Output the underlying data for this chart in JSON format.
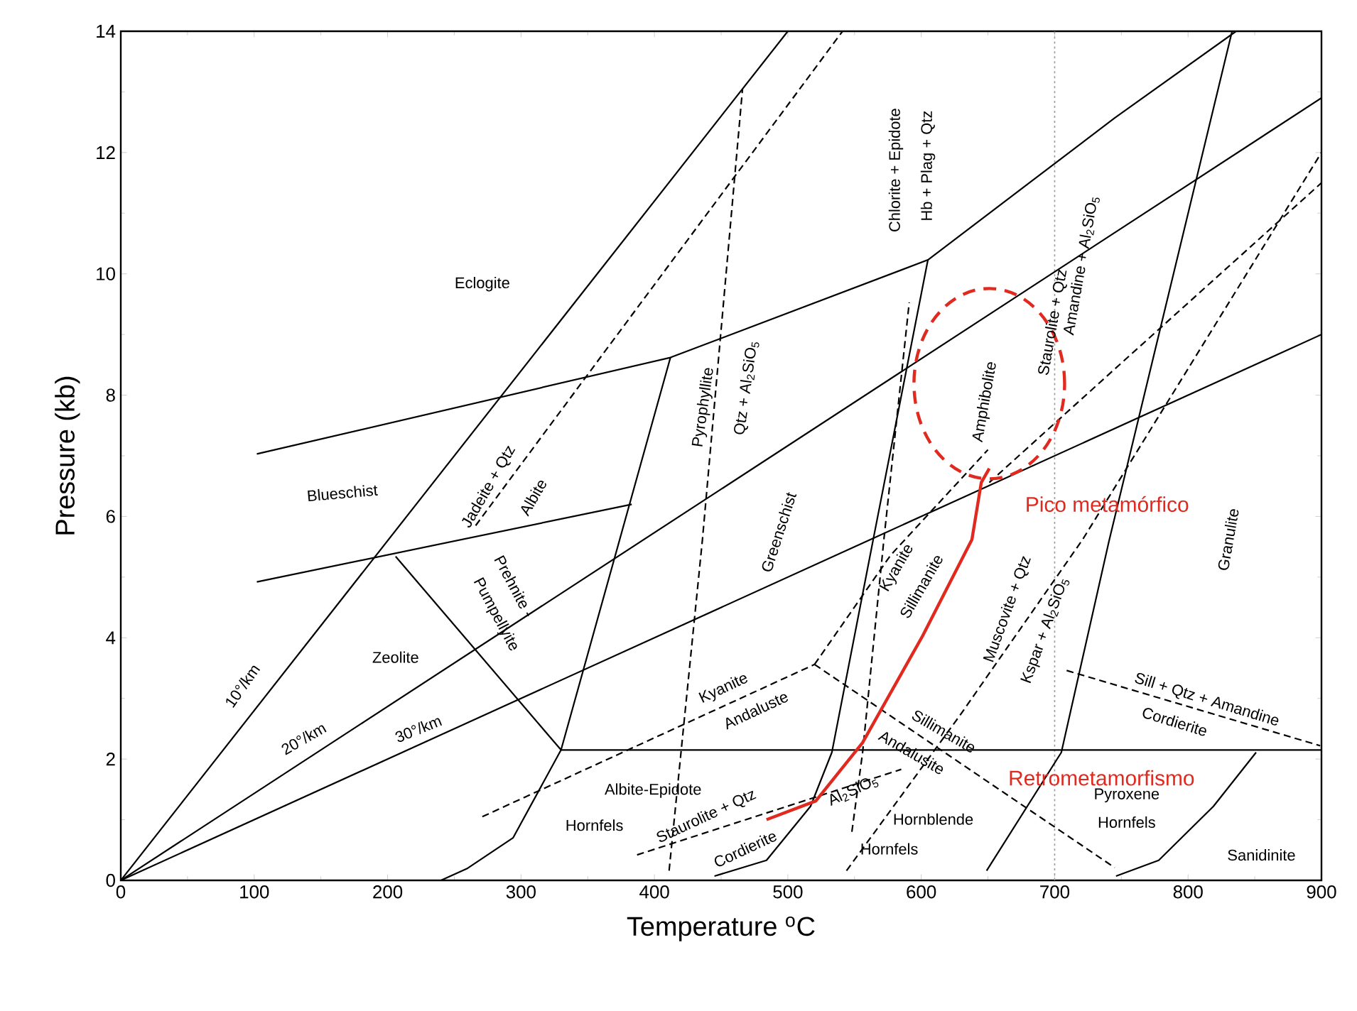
{
  "chart_data": {
    "type": "line",
    "xlabel": "Temperature $^{o}$C",
    "ylabel": "Pressure (kb)",
    "xlim": [
      0,
      900
    ],
    "ylim": [
      0,
      14
    ],
    "xticks": [
      0,
      100,
      200,
      300,
      400,
      500,
      600,
      700,
      800,
      900
    ],
    "yticks": [
      0,
      2,
      4,
      6,
      8,
      10,
      12,
      14
    ],
    "series": [
      {
        "color": "#000000",
        "line_style": "solid",
        "x": [
          102,
          412,
          605,
          745,
          836
        ],
        "values": [
          7.03,
          8.62,
          10.23,
          12.57,
          14
        ]
      },
      {
        "color": "#000000",
        "line_style": "solid",
        "x": [
          102,
          383
        ],
        "values": [
          4.92,
          6.2
        ]
      },
      {
        "color": "#000000",
        "line_style": "solid",
        "x": [
          412,
          330,
          294,
          260,
          240
        ],
        "values": [
          8.62,
          2.15,
          0.7,
          0.2,
          0
        ]
      },
      {
        "color": "#000000",
        "line_style": "solid",
        "x": [
          206,
          330
        ],
        "values": [
          5.34,
          2.15
        ]
      },
      {
        "color": "#000000",
        "line_style": "solid",
        "x": [
          605,
          564,
          533,
          517,
          484,
          445
        ],
        "values": [
          10.23,
          5.62,
          2.11,
          1.22,
          0.33,
          0.07
        ]
      },
      {
        "color": "#000000",
        "line_style": "solid",
        "x": [
          833,
          741,
          705,
          649
        ],
        "values": [
          14,
          5.62,
          2.11,
          0.16
        ]
      },
      {
        "color": "#000000",
        "line_style": "solid",
        "x": [
          330,
          900
        ],
        "values": [
          2.15,
          2.15
        ]
      },
      {
        "color": "#000000",
        "line_style": "solid",
        "x": [
          851,
          819,
          778,
          746
        ],
        "values": [
          2.11,
          1.22,
          0.33,
          0.07
        ]
      },
      {
        "color": "#000000",
        "line_style": "solid",
        "x": [
          0,
          500
        ],
        "values": [
          0,
          14
        ]
      },
      {
        "color": "#000000",
        "line_style": "solid",
        "x": [
          0,
          900
        ],
        "values": [
          0,
          12.9
        ]
      },
      {
        "color": "#000000",
        "line_style": "solid",
        "x": [
          0,
          900
        ],
        "values": [
          0,
          9.0
        ]
      },
      {
        "color": "#000000",
        "line_style": "dashed",
        "x": [
          266,
          541
        ],
        "values": [
          5.85,
          14
        ]
      },
      {
        "color": "#000000",
        "line_style": "dashed",
        "x": [
          411,
          436,
          466
        ],
        "values": [
          0.16,
          5.62,
          13.04
        ]
      },
      {
        "color": "#000000",
        "line_style": "dashed",
        "x": [
          548,
          556,
          572,
          591
        ],
        "values": [
          0.8,
          2.1,
          5.62,
          9.53
        ]
      },
      {
        "color": "#000000",
        "line_style": "dashed",
        "x": [
          271,
          520
        ],
        "values": [
          1.05,
          3.56
        ]
      },
      {
        "color": "#000000",
        "line_style": "dashed",
        "x": [
          520,
          745
        ],
        "values": [
          3.56,
          0.21
        ]
      },
      {
        "color": "#000000",
        "line_style": "dashed",
        "x": [
          520,
          577,
          650
        ],
        "values": [
          3.56,
          5.36,
          7.1
        ]
      },
      {
        "color": "#000000",
        "line_style": "dashed",
        "x": [
          544,
          629,
          721,
          900
        ],
        "values": [
          0.16,
          2.72,
          5.62,
          12.0
        ]
      },
      {
        "color": "#000000",
        "line_style": "dashed",
        "x": [
          651,
          745,
          900
        ],
        "values": [
          6.56,
          8.43,
          11.5
        ]
      },
      {
        "color": "#000000",
        "line_style": "dashed",
        "x": [
          709,
          899
        ],
        "values": [
          3.46,
          2.22
        ]
      },
      {
        "color": "#000000",
        "line_style": "dashed",
        "x": [
          387,
          585
        ],
        "values": [
          0.42,
          1.83
        ]
      },
      {
        "color": "#e02a20",
        "line_style": "solid",
        "x": [
          484,
          521,
          556,
          601,
          638,
          645,
          651
        ],
        "values": [
          1.0,
          1.31,
          2.27,
          4.03,
          5.62,
          6.56,
          6.79
        ]
      }
    ],
    "ref_lines": [
      {
        "axis": "x",
        "value": 700,
        "color": "#9a9a9a",
        "line_style": "dotted"
      }
    ],
    "annotations": [
      "Eclogite",
      "Blueschist",
      "Jadeite + Qtz",
      "Albite",
      "Prehnite -",
      "Pumpellyite",
      "Zeolite",
      "10°/km",
      "20°/km",
      "30°/km",
      "Greenschist",
      "Pyrophyllite",
      "Qtz + Al$_{2}$SiO$_{5}$",
      "Chlorite + Epidote",
      "Hb + Plag + Qtz",
      "Amphibolite",
      "Staurolite + Qtz",
      "Amandine + Al$_{2}$SiO$_{5}$",
      "Granulite",
      "Kyanite",
      "Sillimanite",
      "Muscovite + Qtz",
      "Kspar + Al$_{2}$SiO$_{5}$",
      "Kyanite",
      "Andaluste",
      "Sillimanite",
      "Andalusite",
      "Sill + Qtz + Amandine",
      "Cordierite",
      "Albite-Epidote",
      "Hornfels",
      "Staurolite + Qtz",
      "Cordierite",
      "Al$_{2}$SiO$_{5}$",
      "Hornblende",
      "Hornfels",
      "Pyroxene",
      "Hornfels",
      "Sanidinite",
      {
        "text": "Pico metamórfico",
        "x": 651,
        "y": 6.79
      },
      "Retrometamorfismo"
    ]
  }
}
